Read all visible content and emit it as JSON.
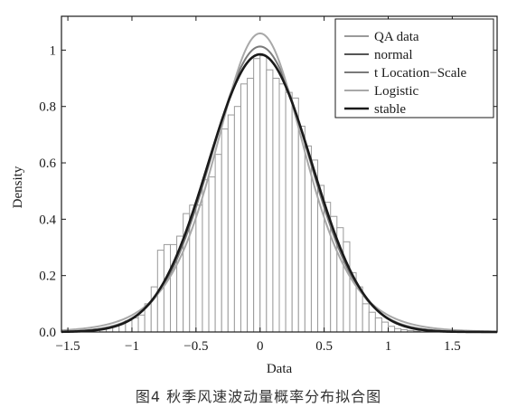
{
  "caption": "图4 秋季风速波动量概率分布拟合图",
  "chart_data": {
    "type": "bar",
    "xlabel": "Data",
    "ylabel": "Density",
    "xlim": [
      -1.55,
      1.85
    ],
    "ylim": [
      0,
      1.12
    ],
    "xticks": [
      -1.5,
      -1,
      -0.5,
      0,
      0.5,
      1,
      1.5
    ],
    "xtick_labels": [
      "−1.5",
      "−1",
      "−0.5",
      "0",
      "0.5",
      "1",
      "1.5"
    ],
    "yticks": [
      0,
      0.2,
      0.4,
      0.6,
      0.8,
      1.0
    ],
    "ytick_labels": [
      "0.0",
      "0.2",
      "0.4",
      "0.6",
      "0.8",
      "1"
    ],
    "grid": false,
    "legend_position": "top-right",
    "histogram": {
      "name": "QA data",
      "bin_width": 0.05,
      "bin_starts": [
        -1.4,
        -1.35,
        -1.3,
        -1.25,
        -1.2,
        -1.15,
        -1.1,
        -1.05,
        -1.0,
        -0.95,
        -0.9,
        -0.85,
        -0.8,
        -0.75,
        -0.7,
        -0.65,
        -0.6,
        -0.55,
        -0.5,
        -0.45,
        -0.4,
        -0.35,
        -0.3,
        -0.25,
        -0.2,
        -0.15,
        -0.1,
        -0.05,
        0.0,
        0.05,
        0.1,
        0.15,
        0.2,
        0.25,
        0.3,
        0.35,
        0.4,
        0.45,
        0.5,
        0.55,
        0.6,
        0.65,
        0.7,
        0.75,
        0.8,
        0.85,
        0.9,
        0.95,
        1.0,
        1.05,
        1.1,
        1.15,
        1.2
      ],
      "densities": [
        0.005,
        0.007,
        0.01,
        0.012,
        0.015,
        0.02,
        0.03,
        0.04,
        0.05,
        0.06,
        0.1,
        0.16,
        0.29,
        0.31,
        0.31,
        0.34,
        0.42,
        0.45,
        0.45,
        0.54,
        0.55,
        0.63,
        0.72,
        0.77,
        0.8,
        0.88,
        0.9,
        0.97,
        0.98,
        0.93,
        0.9,
        0.88,
        0.85,
        0.83,
        0.73,
        0.66,
        0.61,
        0.52,
        0.46,
        0.41,
        0.37,
        0.32,
        0.21,
        0.16,
        0.1,
        0.07,
        0.05,
        0.035,
        0.02,
        0.012,
        0.008,
        0.005,
        0.003
      ]
    },
    "series": [
      {
        "name": "QA data",
        "kind": "histogram",
        "color": "#9a9a9a"
      },
      {
        "name": "normal",
        "kind": "curve",
        "dist": "normal",
        "mu": 0,
        "sigma": 0.405,
        "color": "#555555"
      },
      {
        "name": "t Location−Scale",
        "kind": "curve",
        "dist": "t",
        "mu": 0,
        "sigma": 0.39,
        "nu": 25,
        "color": "#7a7a7a"
      },
      {
        "name": "Logistic",
        "kind": "curve",
        "dist": "logistic",
        "mu": 0,
        "s": 0.236,
        "color": "#a8a8a8"
      },
      {
        "name": "stable",
        "kind": "curve",
        "dist": "normal",
        "mu": 0,
        "sigma": 0.405,
        "color": "#1a1a1a"
      }
    ]
  }
}
